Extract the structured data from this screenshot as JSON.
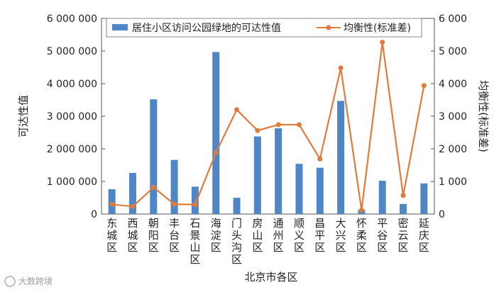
{
  "chart_data": {
    "type": "bar+line",
    "categories": [
      "东城区",
      "西城区",
      "朝阳区",
      "丰台区",
      "石景山区",
      "海淀区",
      "门头沟区",
      "房山区",
      "通州区",
      "顺义区",
      "昌平区",
      "大兴区",
      "怀柔区",
      "平谷区",
      "密云区",
      "延庆区"
    ],
    "series": [
      {
        "name": "居住小区访问公园绿地的可达性值",
        "type": "bar",
        "axis": "left",
        "color": "#4f86c6",
        "values": [
          760000,
          1260000,
          3520000,
          1660000,
          840000,
          4970000,
          500000,
          2380000,
          2630000,
          1540000,
          1420000,
          3470000,
          130000,
          1020000,
          310000,
          940000
        ]
      },
      {
        "name": "均衡性(标准差)",
        "type": "line",
        "axis": "right",
        "color": "#e07b39",
        "values": [
          300,
          230,
          820,
          300,
          290,
          1880,
          3200,
          2560,
          2740,
          2740,
          1690,
          4480,
          120,
          5270,
          570,
          3940
        ]
      }
    ],
    "xlabel": "北京市各区",
    "ylabel_left": "可达性值",
    "ylabel_right": "均衡性(标准差)",
    "ylim_left": [
      0,
      6000000
    ],
    "ylim_right": [
      0,
      6000
    ],
    "yticks_left": [
      "0",
      "1 000 000",
      "2 000 000",
      "3 000 000",
      "4 000 000",
      "5 000 000",
      "6 000 000"
    ],
    "yticks_right": [
      "0",
      "1 000",
      "2 000",
      "3 000",
      "4 000",
      "5 000",
      "6 000"
    ],
    "legend_position": "top",
    "grid": false
  },
  "watermark": {
    "text": "大数跨境"
  }
}
